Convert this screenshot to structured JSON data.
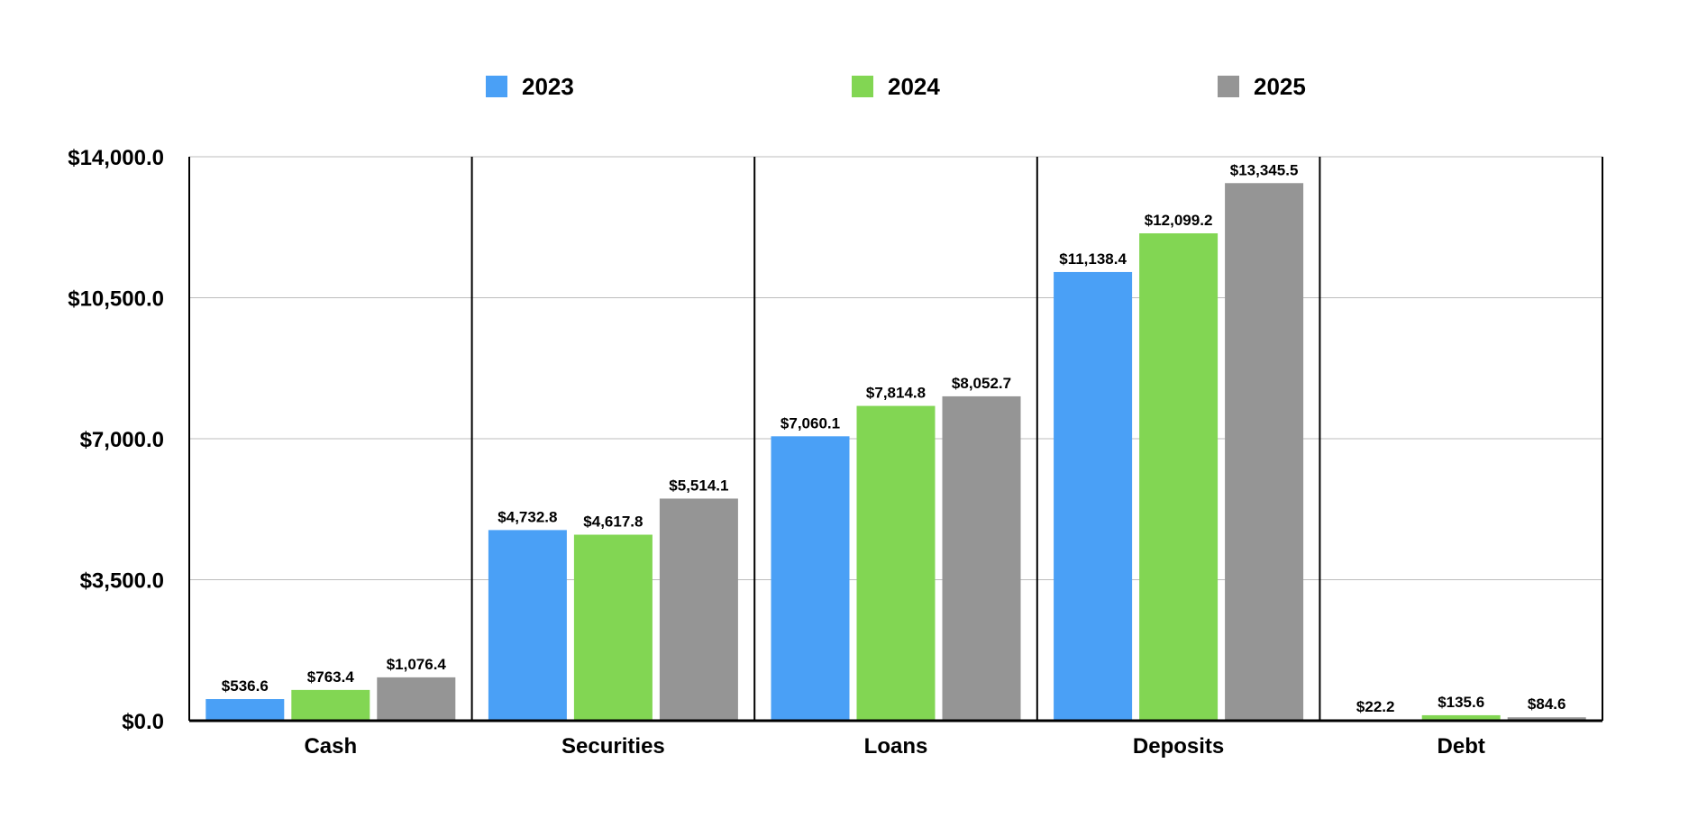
{
  "chart_data": {
    "type": "bar",
    "title": "",
    "xlabel": "",
    "ylabel": "",
    "categories": [
      "Cash",
      "Securities",
      "Loans",
      "Deposits",
      "Debt"
    ],
    "series": [
      {
        "name": "2023",
        "color": "#4aa0f6",
        "values": [
          536.6,
          4732.8,
          7060.1,
          11138.4,
          22.2
        ],
        "labels": [
          "$536.6",
          "$4,732.8",
          "$7,060.1",
          "$11,138.4",
          "$22.2"
        ]
      },
      {
        "name": "2024",
        "color": "#82d653",
        "values": [
          763.4,
          4617.8,
          7814.8,
          12099.2,
          135.6
        ],
        "labels": [
          "$763.4",
          "$4,617.8",
          "$7,814.8",
          "$12,099.2",
          "$135.6"
        ]
      },
      {
        "name": "2025",
        "color": "#959595",
        "values": [
          1076.4,
          5514.1,
          8052.7,
          13345.5,
          84.6
        ],
        "labels": [
          "$1,076.4",
          "$5,514.1",
          "$8,052.7",
          "$13,345.5",
          "$84.6"
        ]
      }
    ],
    "ylim": [
      0,
      14000
    ],
    "yticks": [
      0,
      3500,
      7000,
      10500,
      14000
    ],
    "ytick_labels": [
      "$0.0",
      "$3,500.0",
      "$7,000.0",
      "$10,500.0",
      "$14,000.0"
    ],
    "grid": true,
    "legend_position": "top"
  }
}
